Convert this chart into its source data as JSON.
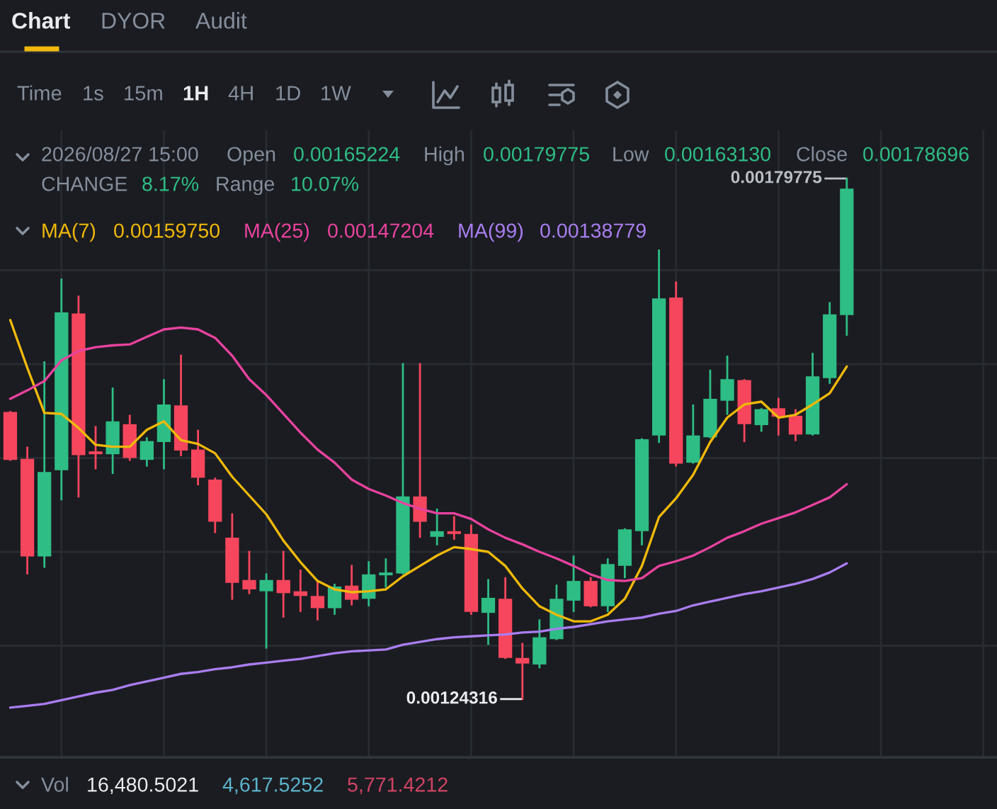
{
  "chart_data": {
    "type": "candlestick",
    "categories": [
      null,
      null,
      null,
      null,
      null,
      null,
      null,
      null,
      null,
      null,
      null,
      null,
      null,
      null,
      null,
      null,
      null,
      null,
      null,
      null,
      null,
      null,
      null,
      null,
      null,
      null,
      null,
      null,
      null,
      null,
      null,
      null,
      null,
      null,
      null,
      null,
      null,
      null,
      null,
      null,
      null,
      null,
      null,
      null,
      null,
      null,
      null,
      null,
      null,
      null
    ],
    "ohlc": [
      [
        0.001549,
        0.001549,
        0.001498,
        0.001498
      ],
      [
        0.001499,
        0.001511,
        0.001377,
        0.001395
      ],
      [
        0.001395,
        0.001602,
        0.001384,
        0.001485
      ],
      [
        0.001487,
        0.00169,
        0.001456,
        0.001655
      ],
      [
        0.001654,
        0.001672,
        0.001459,
        0.001503
      ],
      [
        0.001507,
        0.001533,
        0.001489,
        0.001504
      ],
      [
        0.001504,
        0.001574,
        0.001484,
        0.001539
      ],
      [
        0.001536,
        0.001545,
        0.001498,
        0.0015
      ],
      [
        0.001498,
        0.001521,
        0.001492,
        0.001518
      ],
      [
        0.001517,
        0.001583,
        0.001489,
        0.001557
      ],
      [
        0.001556,
        0.001609,
        0.001503,
        0.001508
      ],
      [
        0.001509,
        0.001529,
        0.001472,
        0.001479
      ],
      [
        0.001477,
        0.001478,
        0.001421,
        0.001432
      ],
      [
        0.001415,
        0.00144,
        0.00135,
        0.001367
      ],
      [
        0.00137,
        0.0014,
        0.001356,
        0.00136
      ],
      [
        0.001358,
        0.001376,
        0.001298,
        0.00137
      ],
      [
        0.00137,
        0.0014,
        0.001331,
        0.001356
      ],
      [
        0.001358,
        0.00138,
        0.001337,
        0.001353
      ],
      [
        0.001353,
        0.001368,
        0.001328,
        0.00134
      ],
      [
        0.00134,
        0.001365,
        0.001334,
        0.001363
      ],
      [
        0.001364,
        0.001385,
        0.001344,
        0.001349
      ],
      [
        0.00135,
        0.001389,
        0.001343,
        0.001376
      ],
      [
        0.001375,
        0.001392,
        0.001363,
        0.001378
      ],
      [
        0.001377,
        0.0016,
        0.001377,
        0.001459
      ],
      [
        0.001459,
        0.0016,
        0.001416,
        0.001432
      ],
      [
        0.001416,
        0.001445,
        0.001408,
        0.001422
      ],
      [
        0.001422,
        0.001437,
        0.001414,
        0.001419
      ],
      [
        0.001419,
        0.001428,
        0.001334,
        0.001336
      ],
      [
        0.001335,
        0.00137,
        0.001302,
        0.001351
      ],
      [
        0.00135,
        0.001372,
        0.001287,
        0.001287
      ],
      [
        0.001287,
        0.001302,
        0.00124316,
        0.001281
      ],
      [
        0.00128,
        0.001327,
        0.001277,
        0.001309
      ],
      [
        0.001307,
        0.001364,
        0.001307,
        0.00135
      ],
      [
        0.001348,
        0.001395,
        0.001337,
        0.001369
      ],
      [
        0.001369,
        0.001372,
        0.001342,
        0.001342
      ],
      [
        0.001342,
        0.001392,
        0.001337,
        0.001387
      ],
      [
        0.001385,
        0.001424,
        0.001373,
        0.001424
      ],
      [
        0.001422,
        0.00152,
        0.001408,
        0.00152
      ],
      [
        0.001524,
        0.001721,
        0.001517,
        0.00167
      ],
      [
        0.001671,
        0.001687,
        0.001492,
        0.001494
      ],
      [
        0.001495,
        0.001556,
        0.001495,
        0.001524
      ],
      [
        0.001522,
        0.001593,
        0.001522,
        0.001563
      ],
      [
        0.001561,
        0.001608,
        0.001547,
        0.001584
      ],
      [
        0.001583,
        0.001583,
        0.001518,
        0.001536
      ],
      [
        0.001535,
        0.001552,
        0.001529,
        0.001552
      ],
      [
        0.001553,
        0.001563,
        0.001525,
        0.001544
      ],
      [
        0.001545,
        0.001551,
        0.001519,
        0.001525
      ],
      [
        0.001525,
        0.001611,
        0.001525,
        0.001587
      ],
      [
        0.001585,
        0.001665,
        0.00158,
        0.001653
      ],
      [
        0.00165224,
        0.00179775,
        0.0016313,
        0.00178696
      ]
    ],
    "colors": [
      "#f6465d",
      "#f6465d",
      "#2ebd85",
      "#2ebd85",
      "#f6465d",
      "#f6465d",
      "#2ebd85",
      "#f6465d",
      "#2ebd85",
      "#2ebd85",
      "#f6465d",
      "#f6465d",
      "#f6465d",
      "#f6465d",
      "#f6465d",
      "#2ebd85",
      "#f6465d",
      "#f6465d",
      "#f6465d",
      "#2ebd85",
      "#f6465d",
      "#2ebd85",
      "#2ebd85",
      "#2ebd85",
      "#f6465d",
      "#2ebd85",
      "#f6465d",
      "#f6465d",
      "#2ebd85",
      "#f6465d",
      "#f6465d",
      "#2ebd85",
      "#2ebd85",
      "#2ebd85",
      "#f6465d",
      "#2ebd85",
      "#2ebd85",
      "#2ebd85",
      "#2ebd85",
      "#f6465d",
      "#2ebd85",
      "#2ebd85",
      "#2ebd85",
      "#f6465d",
      "#2ebd85",
      "#f6465d",
      "#f6465d",
      "#2ebd85",
      "#2ebd85",
      "#2ebd85"
    ],
    "series": [
      {
        "type": "line",
        "name": "MA(7)",
        "color": "#f0b90b",
        "values": [
          0.001647,
          0.001596,
          0.001548,
          0.001547,
          0.001532,
          0.001514,
          0.001512,
          0.001512,
          0.00153,
          0.001539,
          0.001519,
          0.001515,
          0.001505,
          0.00148,
          0.00146,
          0.00144,
          0.001412,
          0.001389,
          0.001369,
          0.00136,
          0.001357,
          0.001358,
          0.00136,
          0.001374,
          0.001385,
          0.001396,
          0.001405,
          0.001403,
          0.0014,
          0.001385,
          0.001361,
          0.001342,
          0.001333,
          0.001326,
          0.001326,
          0.001333,
          0.00135,
          0.001385,
          0.001437,
          0.001457,
          0.001482,
          0.001517,
          0.001543,
          0.001557,
          0.00156,
          0.001543,
          0.001546,
          0.001557,
          0.001569,
          0.0015975
        ]
      },
      {
        "type": "line",
        "name": "MA(25)",
        "color": "#e8439f",
        "values": [
          0.001563,
          0.001572,
          0.001582,
          0.001604,
          0.001614,
          0.001618,
          0.00162,
          0.001621,
          0.001629,
          0.001637,
          0.001639,
          0.001637,
          0.001628,
          0.001609,
          0.001584,
          0.001567,
          0.001547,
          0.001527,
          0.001509,
          0.001495,
          0.001477,
          0.001467,
          0.00146,
          0.001452,
          0.001446,
          0.001441,
          0.001441,
          0.001435,
          0.001424,
          0.001415,
          0.001408,
          0.0014,
          0.001393,
          0.001385,
          0.001376,
          0.00137,
          0.001369,
          0.001372,
          0.001385,
          0.00139,
          0.001396,
          0.001405,
          0.001415,
          0.001422,
          0.00143,
          0.001436,
          0.001442,
          0.00145,
          0.001458,
          0.00147204
        ]
      },
      {
        "type": "line",
        "name": "MA(99)",
        "color": "#a97ef0",
        "values": [
          0.001234,
          0.001236,
          0.001238,
          0.001242,
          0.001246,
          0.00125,
          0.001253,
          0.001258,
          0.001262,
          0.001266,
          0.00127,
          0.001272,
          0.001275,
          0.001277,
          0.00128,
          0.001282,
          0.001284,
          0.001286,
          0.001289,
          0.001292,
          0.001294,
          0.001295,
          0.001296,
          0.001301,
          0.001304,
          0.001307,
          0.001309,
          0.00131,
          0.001311,
          0.001312,
          0.001314,
          0.001315,
          0.001318,
          0.00132,
          0.001323,
          0.001326,
          0.001328,
          0.00133,
          0.001334,
          0.001337,
          0.001343,
          0.001347,
          0.001351,
          0.001355,
          0.001358,
          0.001362,
          0.001366,
          0.001371,
          0.001378,
          0.00138779
        ]
      }
    ],
    "yticks": [
      {
        "value": 0.0013,
        "label": null
      },
      {
        "value": 0.0014,
        "label": null
      },
      {
        "value": 0.0015,
        "label": null
      },
      {
        "value": 0.0016,
        "label": null
      },
      {
        "value": 0.0017,
        "label": null
      }
    ],
    "grid": true,
    "annotations": [
      "Chart",
      "DYOR",
      "Audit",
      "Time",
      "1s",
      "15m",
      "1H",
      "4H",
      "1D",
      "1W",
      "2026/08/27 15:00",
      "Open",
      "0.00165224",
      "High",
      "0.00179775",
      "Low",
      "0.00163130",
      "Close",
      "0.00178696",
      "CHANGE",
      "8.17%",
      "Range",
      "10.07%",
      "0.00159750",
      "0.00147204",
      "0.00138779",
      "Vol",
      "16,480.5021",
      "4,617.5252",
      "5,771.4212",
      "0.00179775",
      "0.00124316"
    ]
  }
}
